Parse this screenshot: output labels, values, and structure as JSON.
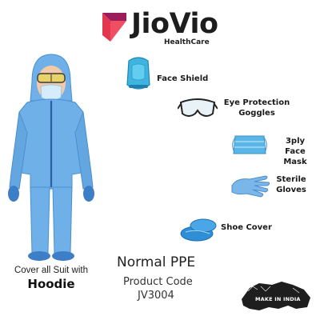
{
  "brand": {
    "name": "JioVio",
    "subtitle": "HealthCare",
    "colors": {
      "mark_primary": "#e2374f",
      "mark_secondary": "#9b1d5a"
    }
  },
  "figure": {
    "caption_line": "Cover all Suit with",
    "caption_strong": "Hoodie",
    "suit_color": "#6fb0e8",
    "zip_color": "#2d5fa8"
  },
  "items": [
    {
      "id": "face-shield",
      "label": "Face Shield"
    },
    {
      "id": "goggles",
      "label_lines": [
        "Eye Protection",
        "Goggles"
      ]
    },
    {
      "id": "mask",
      "label_lines": [
        "3ply Face",
        "Mask"
      ]
    },
    {
      "id": "gloves",
      "label_lines": [
        "Sterile",
        "Gloves"
      ]
    },
    {
      "id": "shoe-cover",
      "label": "Shoe Cover"
    }
  ],
  "product": {
    "title": "Normal PPE",
    "code_label": "Product Code",
    "code": "JV3004"
  },
  "badge": {
    "text": "MAKE IN INDIA"
  }
}
